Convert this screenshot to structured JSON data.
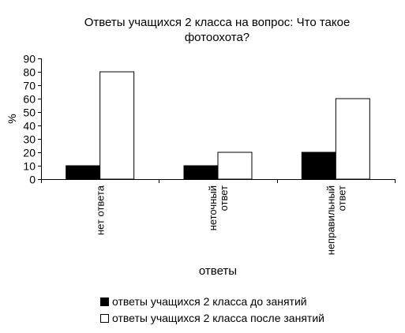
{
  "chart_data": {
    "type": "bar",
    "title_lines": [
      "Ответы учащихся 2 класса на вопрос: Что такое",
      "фотоохота?"
    ],
    "xlabel": "ответы",
    "ylabel": "%",
    "ylim": [
      0,
      90
    ],
    "yticks": [
      "0",
      "10",
      "20",
      "30",
      "40",
      "50",
      "60",
      "70",
      "80",
      "90"
    ],
    "categories": [
      {
        "lines": [
          "нет ответа"
        ]
      },
      {
        "lines": [
          "неточный",
          "ответ"
        ]
      },
      {
        "lines": [
          "неправильный",
          "ответ"
        ]
      }
    ],
    "series": [
      {
        "name": "ответы учащихся 2 класса до занятий",
        "color": "#000000",
        "values": [
          10,
          10,
          20
        ]
      },
      {
        "name": "ответы учащихся 2 класса после занятий",
        "color": "#ffffff",
        "values": [
          80,
          20,
          60
        ]
      }
    ],
    "grid": false,
    "legend_position": "bottom"
  }
}
